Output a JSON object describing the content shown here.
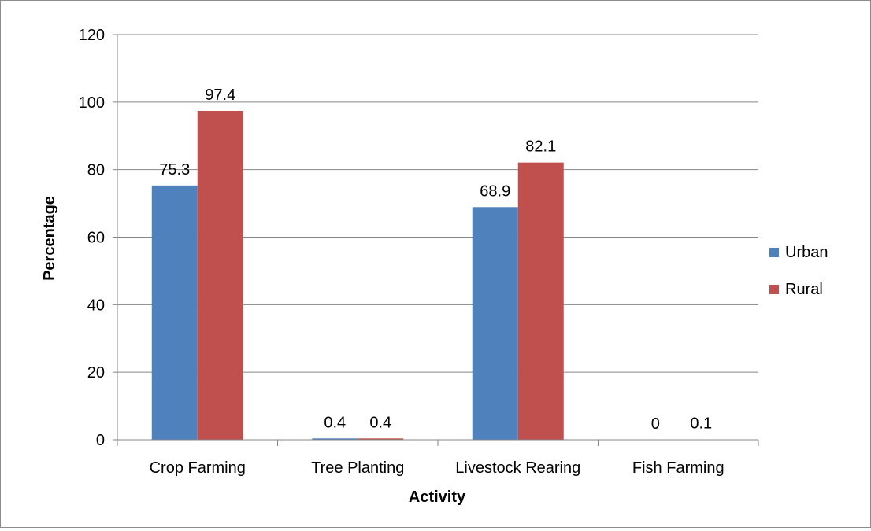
{
  "chart_data": {
    "type": "bar",
    "title": "",
    "xlabel": "Activity",
    "ylabel": "Percentage",
    "categories": [
      "Crop Farming",
      "Tree Planting",
      "Livestock Rearing",
      "Fish Farming"
    ],
    "series": [
      {
        "name": "Urban",
        "color": "#4F81BD",
        "values": [
          75.3,
          0.4,
          68.9,
          0
        ],
        "labels": [
          "75.3",
          "0.4",
          "68.9",
          "0"
        ]
      },
      {
        "name": "Rural",
        "color": "#C0504D",
        "values": [
          97.4,
          0.4,
          82.1,
          0.1
        ],
        "labels": [
          "97.4",
          "0.4",
          "82.1",
          "0.1"
        ]
      }
    ],
    "ylim": [
      0,
      120
    ],
    "yticks": [
      0,
      20,
      40,
      60,
      80,
      100,
      120
    ],
    "ytick_labels": [
      "0",
      "20",
      "40",
      "60",
      "80",
      "100",
      "120"
    ],
    "grid": true,
    "legend_position": "right"
  }
}
